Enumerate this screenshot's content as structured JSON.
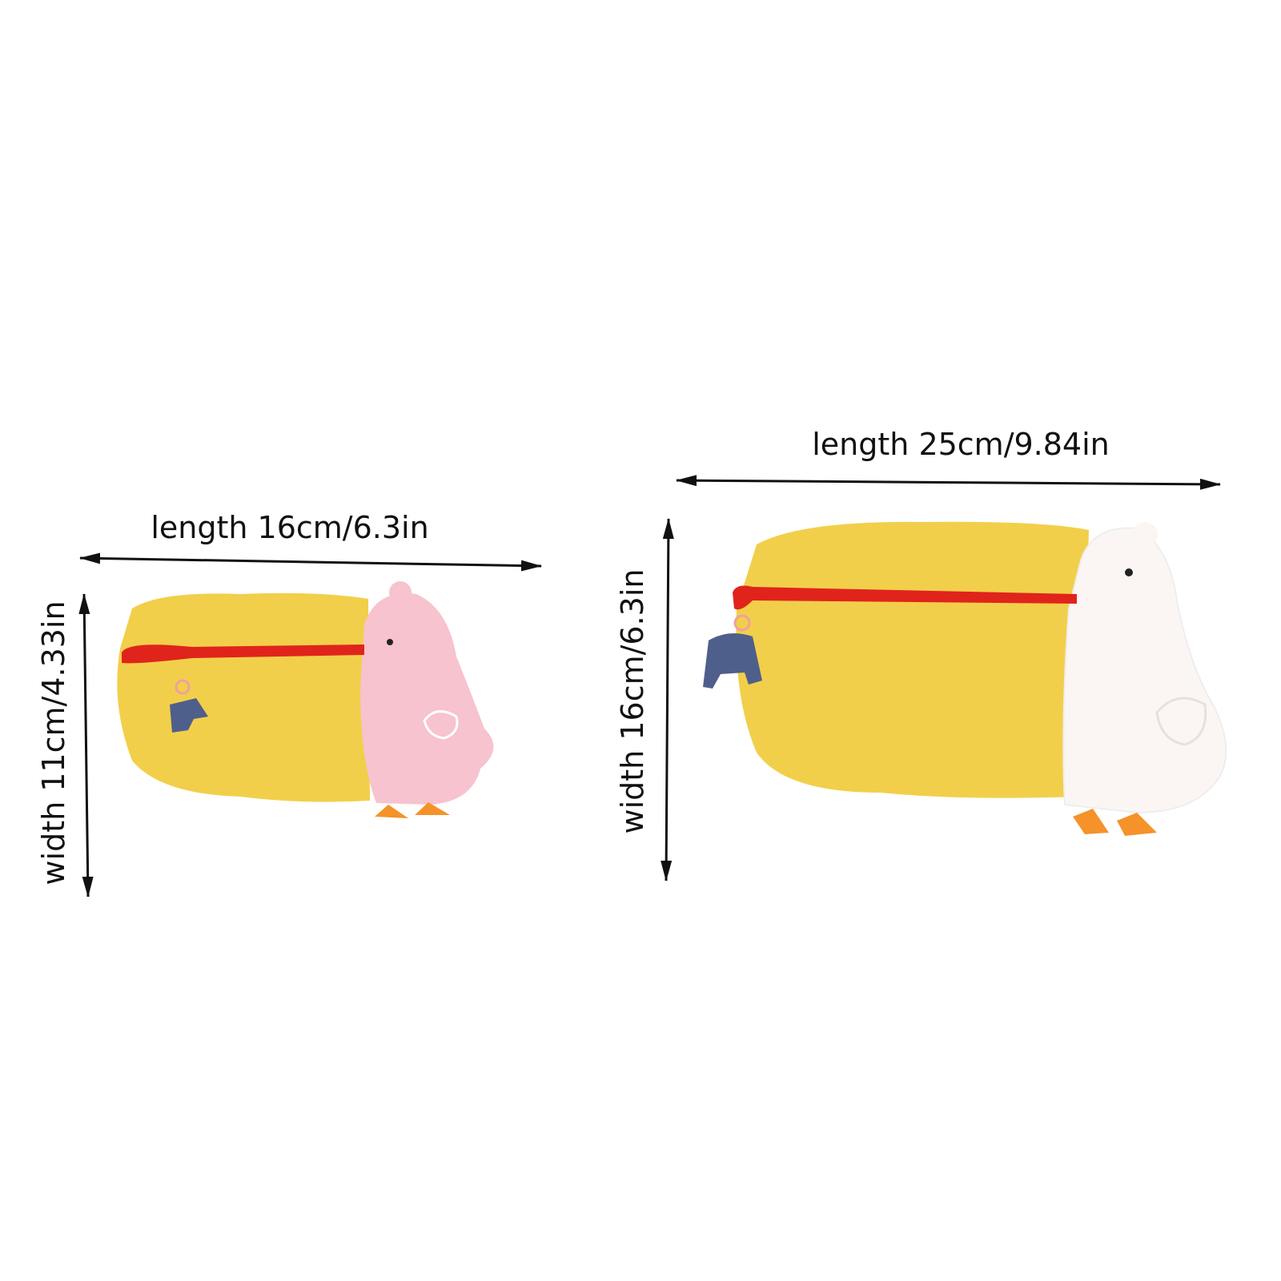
{
  "small_product": {
    "length_label": "length 16cm/6.3in",
    "width_label": "width 11cm/4.33in",
    "chick_color": "#f6c3cf"
  },
  "large_product": {
    "length_label": "length 25cm/9.84in",
    "width_label": "width 16cm/6.3in",
    "chick_color": "#fbf6f4"
  },
  "colors": {
    "body_yellow": "#f2cf4a",
    "zipper_red": "#e0241c",
    "feet_orange": "#f5922a",
    "tag_blue": "#4f5f8c",
    "arrow": "#111111"
  }
}
